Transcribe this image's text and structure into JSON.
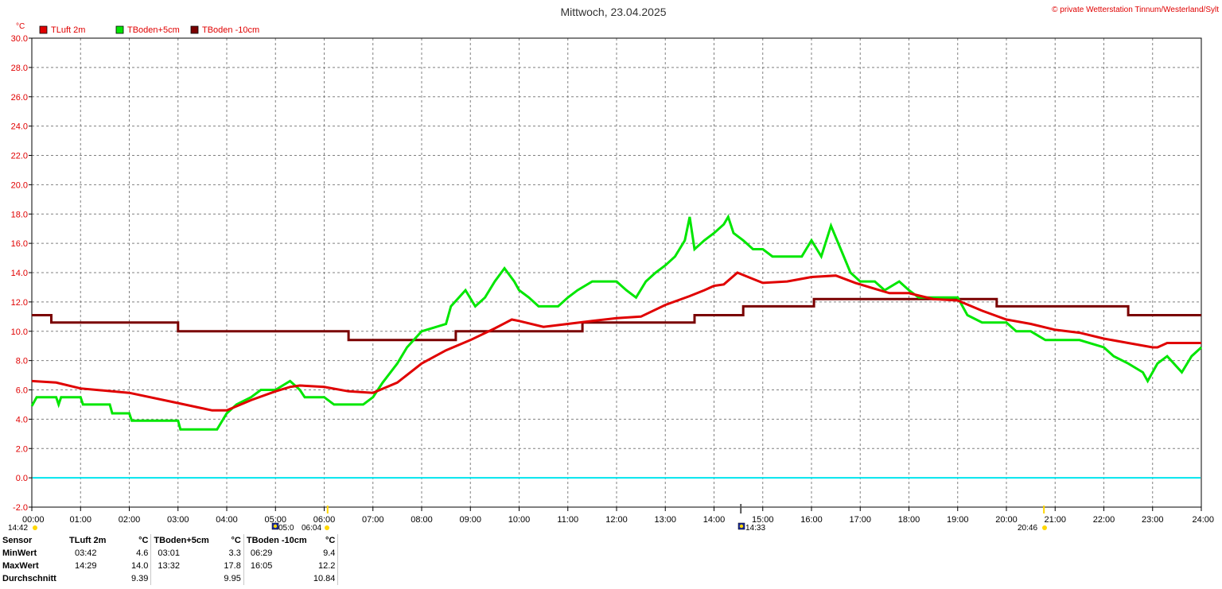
{
  "title": "Mittwoch, 23.04.2025",
  "copyright": "© private Wetterstation Tinnum/Westerland/Sylt",
  "unit": "°C",
  "colors": {
    "tluft": "#e00000",
    "tboden5": "#00e600",
    "tboden10": "#7a0000",
    "zero_line": "#00e5ee",
    "grid": "#808080",
    "sun_marker": "#ffd700"
  },
  "chart_data": {
    "type": "line",
    "xlabel": "",
    "ylabel": "°C",
    "xlim": [
      0,
      24
    ],
    "ylim": [
      -2,
      30
    ],
    "grid": true,
    "legend_position": "top-left",
    "x_ticks": [
      "00:00",
      "01:00",
      "02:00",
      "03:00",
      "04:00",
      "05:00",
      "06:00",
      "07:00",
      "08:00",
      "09:00",
      "10:00",
      "11:00",
      "12:00",
      "13:00",
      "14:00",
      "15:00",
      "16:00",
      "17:00",
      "18:00",
      "19:00",
      "20:00",
      "21:00",
      "22:00",
      "23:00",
      "24:00"
    ],
    "y_ticks": [
      "-2.0",
      "0.0",
      "2.0",
      "4.0",
      "6.0",
      "8.0",
      "10.0",
      "12.0",
      "14.0",
      "16.0",
      "18.0",
      "20.0",
      "22.0",
      "24.0",
      "26.0",
      "28.0",
      "30.0"
    ],
    "series": [
      {
        "name": "TLuft 2m",
        "points": [
          [
            0,
            6.6
          ],
          [
            0.5,
            6.5
          ],
          [
            1,
            6.1
          ],
          [
            2,
            5.8
          ],
          [
            3,
            5.1
          ],
          [
            3.7,
            4.6
          ],
          [
            4,
            4.6
          ],
          [
            4.5,
            5.3
          ],
          [
            5,
            5.9
          ],
          [
            5.3,
            6.2
          ],
          [
            5.5,
            6.3
          ],
          [
            6,
            6.2
          ],
          [
            6.5,
            5.9
          ],
          [
            7,
            5.8
          ],
          [
            7.5,
            6.5
          ],
          [
            8,
            7.8
          ],
          [
            8.5,
            8.7
          ],
          [
            9,
            9.4
          ],
          [
            9.5,
            10.2
          ],
          [
            9.85,
            10.8
          ],
          [
            10,
            10.7
          ],
          [
            10.5,
            10.3
          ],
          [
            11,
            10.5
          ],
          [
            11.5,
            10.7
          ],
          [
            12,
            10.9
          ],
          [
            12.5,
            11.0
          ],
          [
            13,
            11.8
          ],
          [
            13.5,
            12.4
          ],
          [
            13.8,
            12.8
          ],
          [
            14,
            13.1
          ],
          [
            14.2,
            13.2
          ],
          [
            14.48,
            14.0
          ],
          [
            14.7,
            13.7
          ],
          [
            15,
            13.3
          ],
          [
            15.5,
            13.4
          ],
          [
            16,
            13.7
          ],
          [
            16.5,
            13.8
          ],
          [
            16.9,
            13.3
          ],
          [
            17.3,
            12.9
          ],
          [
            17.6,
            12.6
          ],
          [
            18,
            12.6
          ],
          [
            18.5,
            12.2
          ],
          [
            19,
            12.1
          ],
          [
            19.5,
            11.4
          ],
          [
            20,
            10.8
          ],
          [
            20.5,
            10.5
          ],
          [
            21,
            10.1
          ],
          [
            21.5,
            9.9
          ],
          [
            22,
            9.5
          ],
          [
            22.5,
            9.2
          ],
          [
            23,
            8.9
          ],
          [
            23.1,
            8.9
          ],
          [
            23.3,
            9.2
          ],
          [
            23.6,
            9.2
          ],
          [
            24,
            9.2
          ]
        ]
      },
      {
        "name": "TBoden+5cm",
        "points": [
          [
            0,
            4.9
          ],
          [
            0.1,
            5.5
          ],
          [
            0.5,
            5.5
          ],
          [
            0.55,
            5.0
          ],
          [
            0.6,
            5.5
          ],
          [
            1,
            5.5
          ],
          [
            1.05,
            5.0
          ],
          [
            1.6,
            5.0
          ],
          [
            1.65,
            4.4
          ],
          [
            2,
            4.4
          ],
          [
            2.05,
            3.9
          ],
          [
            2.9,
            3.9
          ],
          [
            3,
            3.9
          ],
          [
            3.05,
            3.3
          ],
          [
            3.8,
            3.3
          ],
          [
            4,
            4.4
          ],
          [
            4.2,
            5.0
          ],
          [
            4.5,
            5.5
          ],
          [
            4.7,
            6.0
          ],
          [
            5,
            6.0
          ],
          [
            5.3,
            6.6
          ],
          [
            5.5,
            6.0
          ],
          [
            5.6,
            5.5
          ],
          [
            6,
            5.5
          ],
          [
            6.2,
            5.0
          ],
          [
            6.5,
            5.0
          ],
          [
            6.8,
            5.0
          ],
          [
            7,
            5.5
          ],
          [
            7.2,
            6.5
          ],
          [
            7.5,
            7.8
          ],
          [
            7.7,
            8.9
          ],
          [
            8,
            10.0
          ],
          [
            8.5,
            10.5
          ],
          [
            8.6,
            11.7
          ],
          [
            8.9,
            12.8
          ],
          [
            9.1,
            11.7
          ],
          [
            9.3,
            12.3
          ],
          [
            9.5,
            13.4
          ],
          [
            9.7,
            14.3
          ],
          [
            9.9,
            13.4
          ],
          [
            10,
            12.8
          ],
          [
            10.2,
            12.3
          ],
          [
            10.4,
            11.7
          ],
          [
            10.8,
            11.7
          ],
          [
            11,
            12.3
          ],
          [
            11.2,
            12.8
          ],
          [
            11.5,
            13.4
          ],
          [
            12,
            13.4
          ],
          [
            12.2,
            12.8
          ],
          [
            12.4,
            12.3
          ],
          [
            12.6,
            13.4
          ],
          [
            12.8,
            14.0
          ],
          [
            13,
            14.5
          ],
          [
            13.2,
            15.1
          ],
          [
            13.4,
            16.2
          ],
          [
            13.5,
            17.8
          ],
          [
            13.6,
            15.6
          ],
          [
            13.8,
            16.2
          ],
          [
            14,
            16.7
          ],
          [
            14.2,
            17.3
          ],
          [
            14.29,
            17.8
          ],
          [
            14.4,
            16.7
          ],
          [
            14.6,
            16.2
          ],
          [
            14.8,
            15.6
          ],
          [
            15,
            15.6
          ],
          [
            15.2,
            15.1
          ],
          [
            15.5,
            15.1
          ],
          [
            15.8,
            15.1
          ],
          [
            16,
            16.2
          ],
          [
            16.2,
            15.1
          ],
          [
            16.4,
            17.2
          ],
          [
            16.6,
            15.6
          ],
          [
            16.8,
            14.0
          ],
          [
            17,
            13.4
          ],
          [
            17.3,
            13.4
          ],
          [
            17.5,
            12.8
          ],
          [
            17.8,
            13.4
          ],
          [
            18,
            12.8
          ],
          [
            18.2,
            12.3
          ],
          [
            18.5,
            12.3
          ],
          [
            19,
            12.3
          ],
          [
            19.2,
            11.1
          ],
          [
            19.5,
            10.6
          ],
          [
            20,
            10.6
          ],
          [
            20.2,
            10.0
          ],
          [
            20.5,
            10.0
          ],
          [
            20.8,
            9.4
          ],
          [
            21,
            9.4
          ],
          [
            21.5,
            9.4
          ],
          [
            22,
            8.9
          ],
          [
            22.2,
            8.3
          ],
          [
            22.5,
            7.8
          ],
          [
            22.8,
            7.2
          ],
          [
            22.9,
            6.6
          ],
          [
            23.1,
            7.8
          ],
          [
            23.3,
            8.3
          ],
          [
            23.6,
            7.2
          ],
          [
            23.8,
            8.3
          ],
          [
            24,
            8.9
          ]
        ]
      },
      {
        "name": "TBoden -10cm",
        "points": [
          [
            0,
            11.1
          ],
          [
            0.4,
            11.1
          ],
          [
            0.4,
            10.6
          ],
          [
            3,
            10.6
          ],
          [
            3,
            10.0
          ],
          [
            6.5,
            10.0
          ],
          [
            6.5,
            9.4
          ],
          [
            8.7,
            9.4
          ],
          [
            8.7,
            10.0
          ],
          [
            11.3,
            10.0
          ],
          [
            11.3,
            10.6
          ],
          [
            13.6,
            10.6
          ],
          [
            13.6,
            11.1
          ],
          [
            14.6,
            11.1
          ],
          [
            14.6,
            11.7
          ],
          [
            16.05,
            11.7
          ],
          [
            16.05,
            12.2
          ],
          [
            19.8,
            12.2
          ],
          [
            19.8,
            11.7
          ],
          [
            22.5,
            11.7
          ],
          [
            22.5,
            11.1
          ],
          [
            24,
            11.1
          ]
        ]
      }
    ]
  },
  "markers": {
    "sunrise_label": "06:04",
    "sunset_label": "20:46",
    "moonset_label": "05:0",
    "moonrise_label": "14:33",
    "current_label": "14:42",
    "sunrise_hour": 6.07,
    "sunset_hour": 20.77,
    "moon_hour": 14.55
  },
  "stats": {
    "header": [
      "Sensor",
      "TLuft 2m",
      "°C",
      "TBoden+5cm",
      "°C",
      "TBoden -10cm",
      "°C"
    ],
    "rows": [
      {
        "label": "MinWert",
        "c1": "03:42",
        "v1": "4.6",
        "c2": "03:01",
        "v2": "3.3",
        "c3": "06:29",
        "v3": "9.4"
      },
      {
        "label": "MaxWert",
        "c1": "14:29",
        "v1": "14.0",
        "c2": "13:32",
        "v2": "17.8",
        "c3": "16:05",
        "v3": "12.2"
      },
      {
        "label": "Durchschnitt",
        "c1": "",
        "v1": "9.39",
        "c2": "",
        "v2": "9.95",
        "c3": "",
        "v3": "10.84"
      }
    ]
  }
}
